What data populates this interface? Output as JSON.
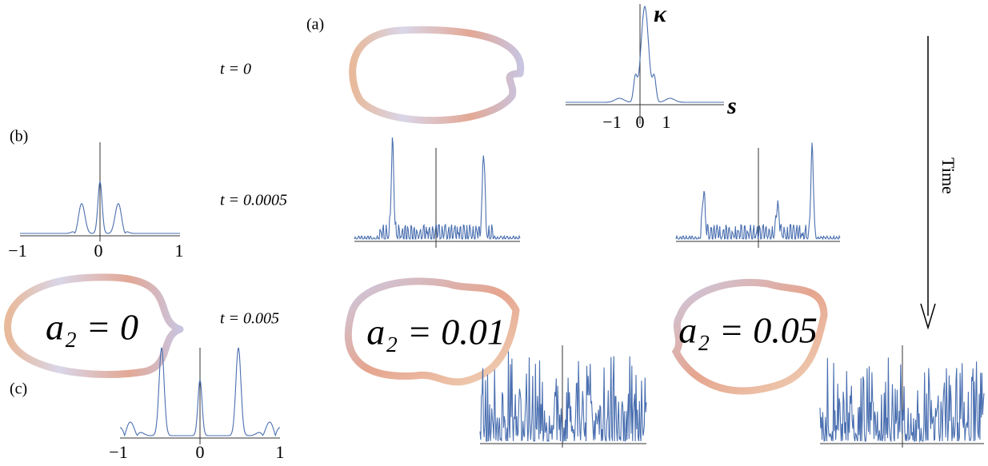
{
  "panel_labels": [
    "(a)",
    "(b)",
    "(c)"
  ],
  "times": [
    "t = 0",
    "t = 0.0005",
    "t = 0.005"
  ],
  "parameters": [
    "a₂ = 0",
    "a₂ = 0.01",
    "a₂ = 0.05"
  ],
  "axis_labels": {
    "y": "κ",
    "x": "s"
  },
  "ticks": {
    "a": [
      "−1",
      "0",
      "1"
    ],
    "b": [
      "−1",
      "0",
      "1"
    ],
    "c": [
      "−1",
      "0",
      "1"
    ]
  },
  "time_arrow": "Time"
}
